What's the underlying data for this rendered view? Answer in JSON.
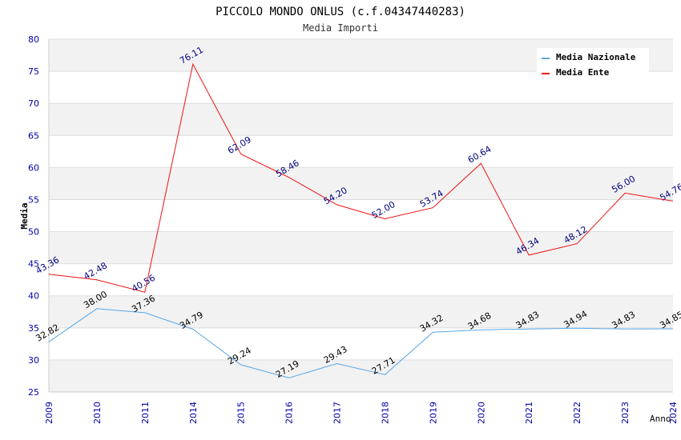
{
  "chart_data": {
    "type": "line",
    "title": "PICCOLO MONDO ONLUS (c.f.04347440283)",
    "subtitle": "Media Importi",
    "xlabel": "Anno",
    "ylabel": "Media",
    "categories": [
      "2009",
      "2010",
      "2011",
      "2014",
      "2015",
      "2016",
      "2017",
      "2018",
      "2019",
      "2020",
      "2021",
      "2022",
      "2023",
      "2024"
    ],
    "ylim": [
      25,
      80
    ],
    "yticks": [
      25,
      30,
      35,
      40,
      45,
      50,
      55,
      60,
      65,
      70,
      75,
      80
    ],
    "grid": true,
    "legend": "top-right",
    "series": [
      {
        "name": "Media Nazionale",
        "color": "#5aa7e6",
        "label_color": "#000000",
        "values": [
          32.82,
          38.0,
          37.36,
          34.79,
          29.24,
          27.19,
          29.43,
          27.71,
          34.32,
          34.68,
          34.83,
          34.94,
          34.83,
          34.85
        ],
        "labels": [
          "32.82",
          "38.00",
          "37.36",
          "34.79",
          "29.24",
          "27.19",
          "29.43",
          "27.71",
          "34.32",
          "34.68",
          "34.83",
          "34.94",
          "34.83",
          "34.85"
        ]
      },
      {
        "name": "Media Ente",
        "color": "#ee1111",
        "label_color": "#000080",
        "values": [
          43.36,
          42.48,
          40.56,
          76.11,
          62.09,
          58.46,
          54.2,
          52.0,
          53.74,
          60.64,
          46.34,
          48.12,
          56.0,
          54.76
        ],
        "labels": [
          "43.36",
          "42.48",
          "40.56",
          "76.11",
          "62.09",
          "58.46",
          "54.20",
          "52.00",
          "53.74",
          "60.64",
          "46.34",
          "48.12",
          "56.00",
          "54.76"
        ]
      }
    ]
  }
}
